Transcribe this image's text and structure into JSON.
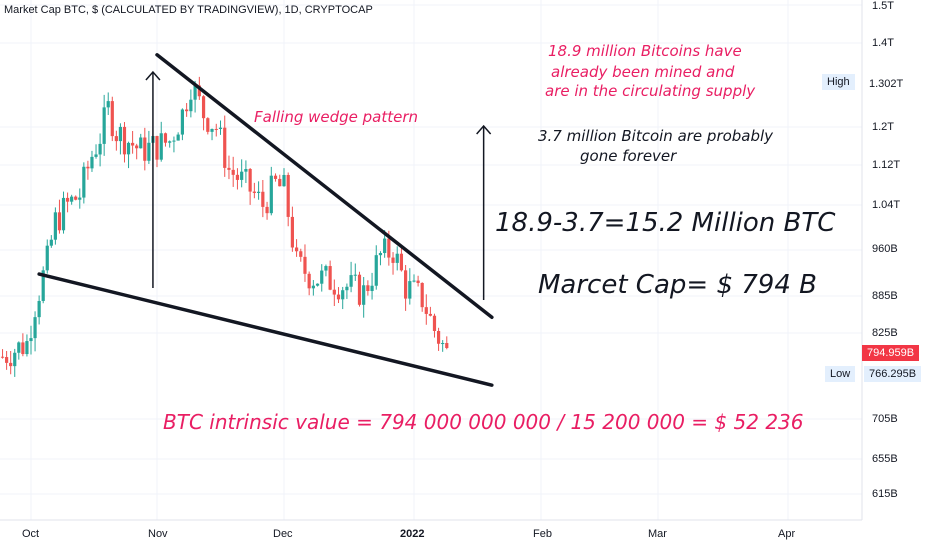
{
  "header": {
    "title": "Market Cap BTC, $ (CALCULATED BY TRADINGVIEW), 1D, CRYPTOCAP"
  },
  "annotations": {
    "wedge": "Falling wedge pattern",
    "mined_1": "18.9 million Bitcoins have",
    "mined_2": "already been mined and",
    "mined_3": "are in the circulating supply",
    "lost_1": "3.7 million Bitcoin are probably",
    "lost_2": "gone forever",
    "calc": "18.9-3.7=15.2 Million BTC",
    "mcap": "Marcet Cap= $ 794 B",
    "intrinsic": "BTC  intrinsic value = 794 000 000 000 / 15 200 000 =  $ 52 236"
  },
  "price_axis": {
    "labels": [
      "1.5T",
      "1.4T",
      "1.2T",
      "1.12T",
      "1.04T",
      "960B",
      "885B",
      "825B",
      "705B",
      "655B",
      "615B"
    ],
    "high_label": "High",
    "high_value": "1.302T",
    "last_value": "794.959B",
    "low_label": "Low",
    "low_value": "766.295B"
  },
  "time_axis": {
    "labels": [
      "Oct",
      "Nov",
      "Dec",
      "2022",
      "Feb",
      "Mar",
      "Apr"
    ]
  },
  "colors": {
    "up": "#26a69a",
    "down": "#ef5350",
    "accent_pink": "#e91e63",
    "high_bg": "#e3effd",
    "last_bg": "#f23645"
  },
  "chart_data": {
    "type": "candlestick",
    "title": "Market Cap BTC, $ (CALCULATED BY TRADINGVIEW), 1D, CRYPTOCAP",
    "y_unit": "USD",
    "ylim_approx": [
      600000000000,
      1500000000000
    ],
    "x_range": [
      "2021-09-24",
      "2022-04-12"
    ],
    "summary": {
      "high": 1302000000000,
      "low": 766295000000,
      "last": 794959000000
    },
    "close_series_billions": [
      {
        "x": "2021-09-24",
        "close": 790
      },
      {
        "x": "2021-09-27",
        "close": 800
      },
      {
        "x": "2021-09-30",
        "close": 810
      },
      {
        "x": "2021-10-02",
        "close": 870
      },
      {
        "x": "2021-10-05",
        "close": 940
      },
      {
        "x": "2021-10-07",
        "close": 1010
      },
      {
        "x": "2021-10-10",
        "close": 1040
      },
      {
        "x": "2021-10-13",
        "close": 1060
      },
      {
        "x": "2021-10-16",
        "close": 1140
      },
      {
        "x": "2021-10-18",
        "close": 1180
      },
      {
        "x": "2021-10-20",
        "close": 1240
      },
      {
        "x": "2021-10-22",
        "close": 1190
      },
      {
        "x": "2021-10-25",
        "close": 1170
      },
      {
        "x": "2021-10-28",
        "close": 1150
      },
      {
        "x": "2021-11-01",
        "close": 1160
      },
      {
        "x": "2021-11-04",
        "close": 1170
      },
      {
        "x": "2021-11-07",
        "close": 1230
      },
      {
        "x": "2021-11-09",
        "close": 1300
      },
      {
        "x": "2021-11-12",
        "close": 1230
      },
      {
        "x": "2021-11-15",
        "close": 1200
      },
      {
        "x": "2021-11-18",
        "close": 1110
      },
      {
        "x": "2021-11-22",
        "close": 1080
      },
      {
        "x": "2021-11-26",
        "close": 1040
      },
      {
        "x": "2021-11-29",
        "close": 1080
      },
      {
        "x": "2021-12-01",
        "close": 1070
      },
      {
        "x": "2021-12-04",
        "close": 935
      },
      {
        "x": "2021-12-08",
        "close": 915
      },
      {
        "x": "2021-12-12",
        "close": 910
      },
      {
        "x": "2021-12-16",
        "close": 900
      },
      {
        "x": "2021-12-20",
        "close": 890
      },
      {
        "x": "2021-12-24",
        "close": 950
      },
      {
        "x": "2021-12-27",
        "close": 960
      },
      {
        "x": "2021-12-30",
        "close": 900
      },
      {
        "x": "2022-01-03",
        "close": 880
      },
      {
        "x": "2022-01-06",
        "close": 830
      },
      {
        "x": "2022-01-09",
        "close": 795
      }
    ],
    "trendlines_billions": [
      {
        "name": "upper",
        "from": {
          "x": "2021-11-01",
          "y": 1370
        },
        "to": {
          "x": "2022-01-20",
          "y": 850
        }
      },
      {
        "name": "lower",
        "from": {
          "x": "2021-10-03",
          "y": 920
        },
        "to": {
          "x": "2022-01-20",
          "y": 750
        }
      }
    ]
  }
}
